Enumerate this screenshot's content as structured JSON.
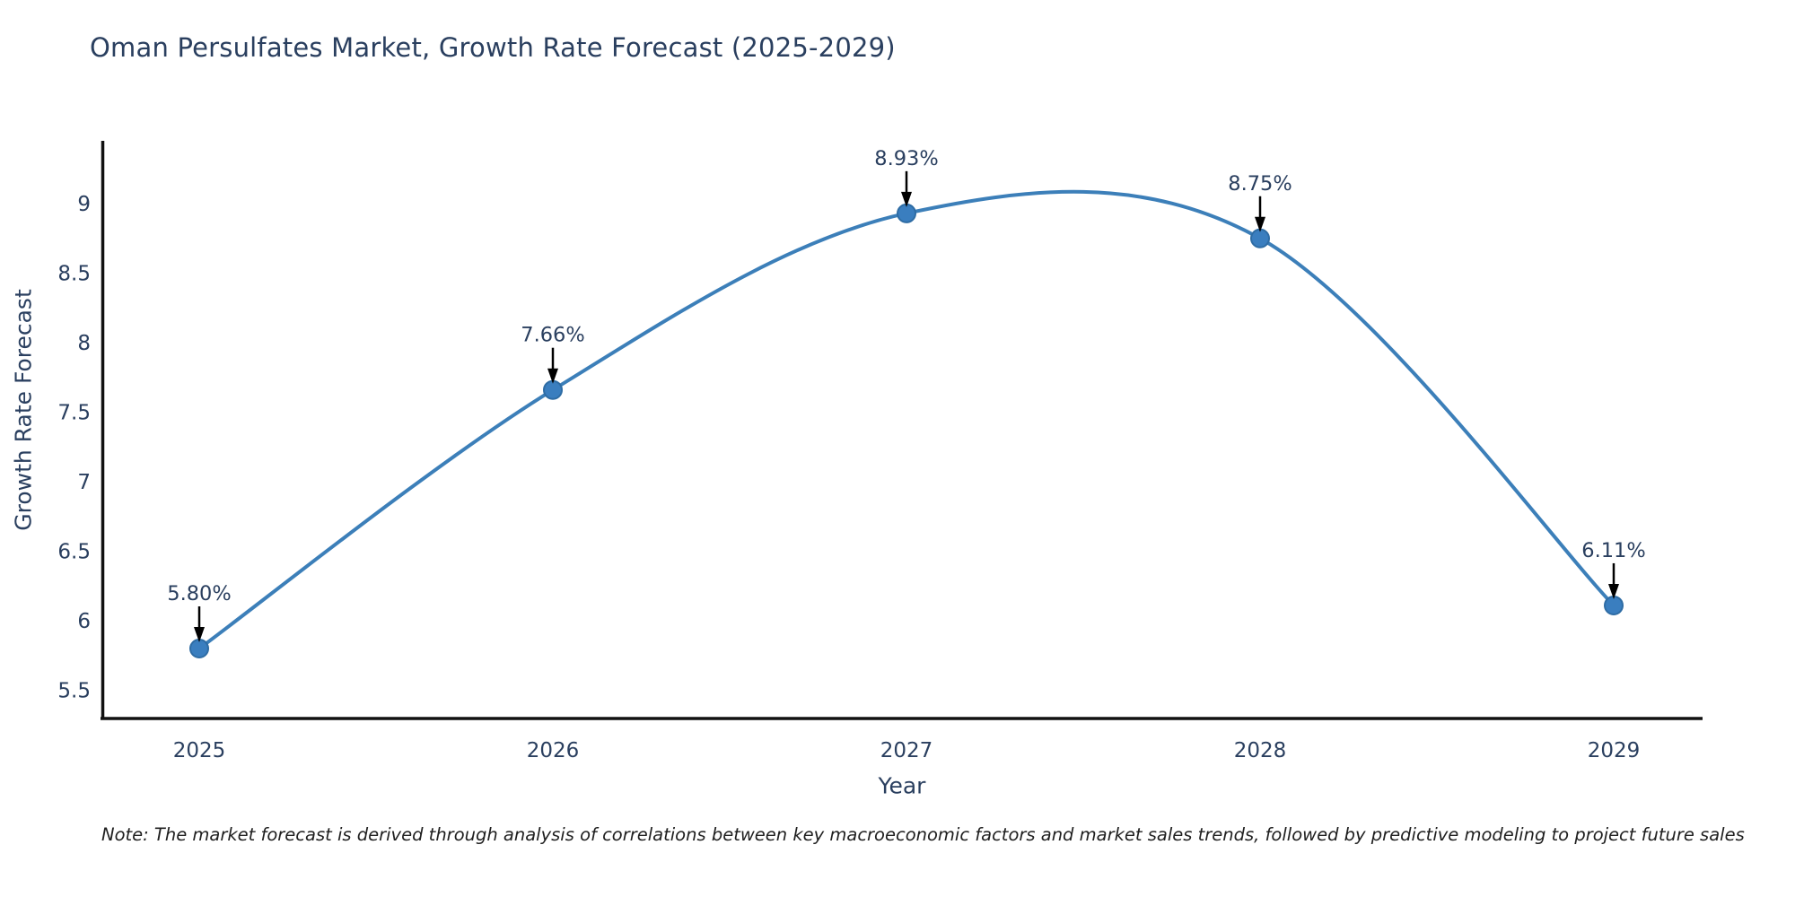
{
  "chart_data": {
    "type": "line",
    "line_shape": "spline",
    "title": "Oman Persulfates Market, Growth Rate Forecast (2025-2029)",
    "xlabel": "Year",
    "ylabel": "Growth Rate Forecast",
    "x": [
      2025,
      2026,
      2027,
      2028,
      2029
    ],
    "series": [
      {
        "name": "Growth Rate Forecast",
        "values": [
          5.8,
          7.66,
          8.93,
          8.75,
          6.11
        ]
      }
    ],
    "point_labels": [
      "5.80%",
      "7.66%",
      "8.93%",
      "8.75%",
      "6.11%"
    ],
    "xtick_labels": [
      "2025",
      "2026",
      "2027",
      "2028",
      "2029"
    ],
    "ytick_labels": [
      "5.5",
      "6",
      "6.5",
      "7",
      "7.5",
      "8",
      "8.5",
      "9"
    ],
    "ytick_values": [
      5.5,
      6,
      6.5,
      7,
      7.5,
      8,
      8.5,
      9
    ],
    "ylim": [
      5.3,
      9.45
    ],
    "xlim": [
      2024.72,
      2029.25
    ],
    "grid": false,
    "legend_position": "none",
    "colors": {
      "line": "#3c7fb9",
      "marker_fill": "#3a7ebf",
      "marker_stroke": "#2e6ca4",
      "axis": "#111111",
      "tick_text": "#2a3f5f",
      "annotation_text": "#2a3f5f",
      "annotation_arrow": "#000000",
      "title_text": "#2a3f5f",
      "note_text": "#1f1f1f"
    },
    "note": "Note: The market forecast is derived through analysis of correlations between key macroeconomic factors and market sales trends, followed by predictive modeling to project future sales"
  }
}
